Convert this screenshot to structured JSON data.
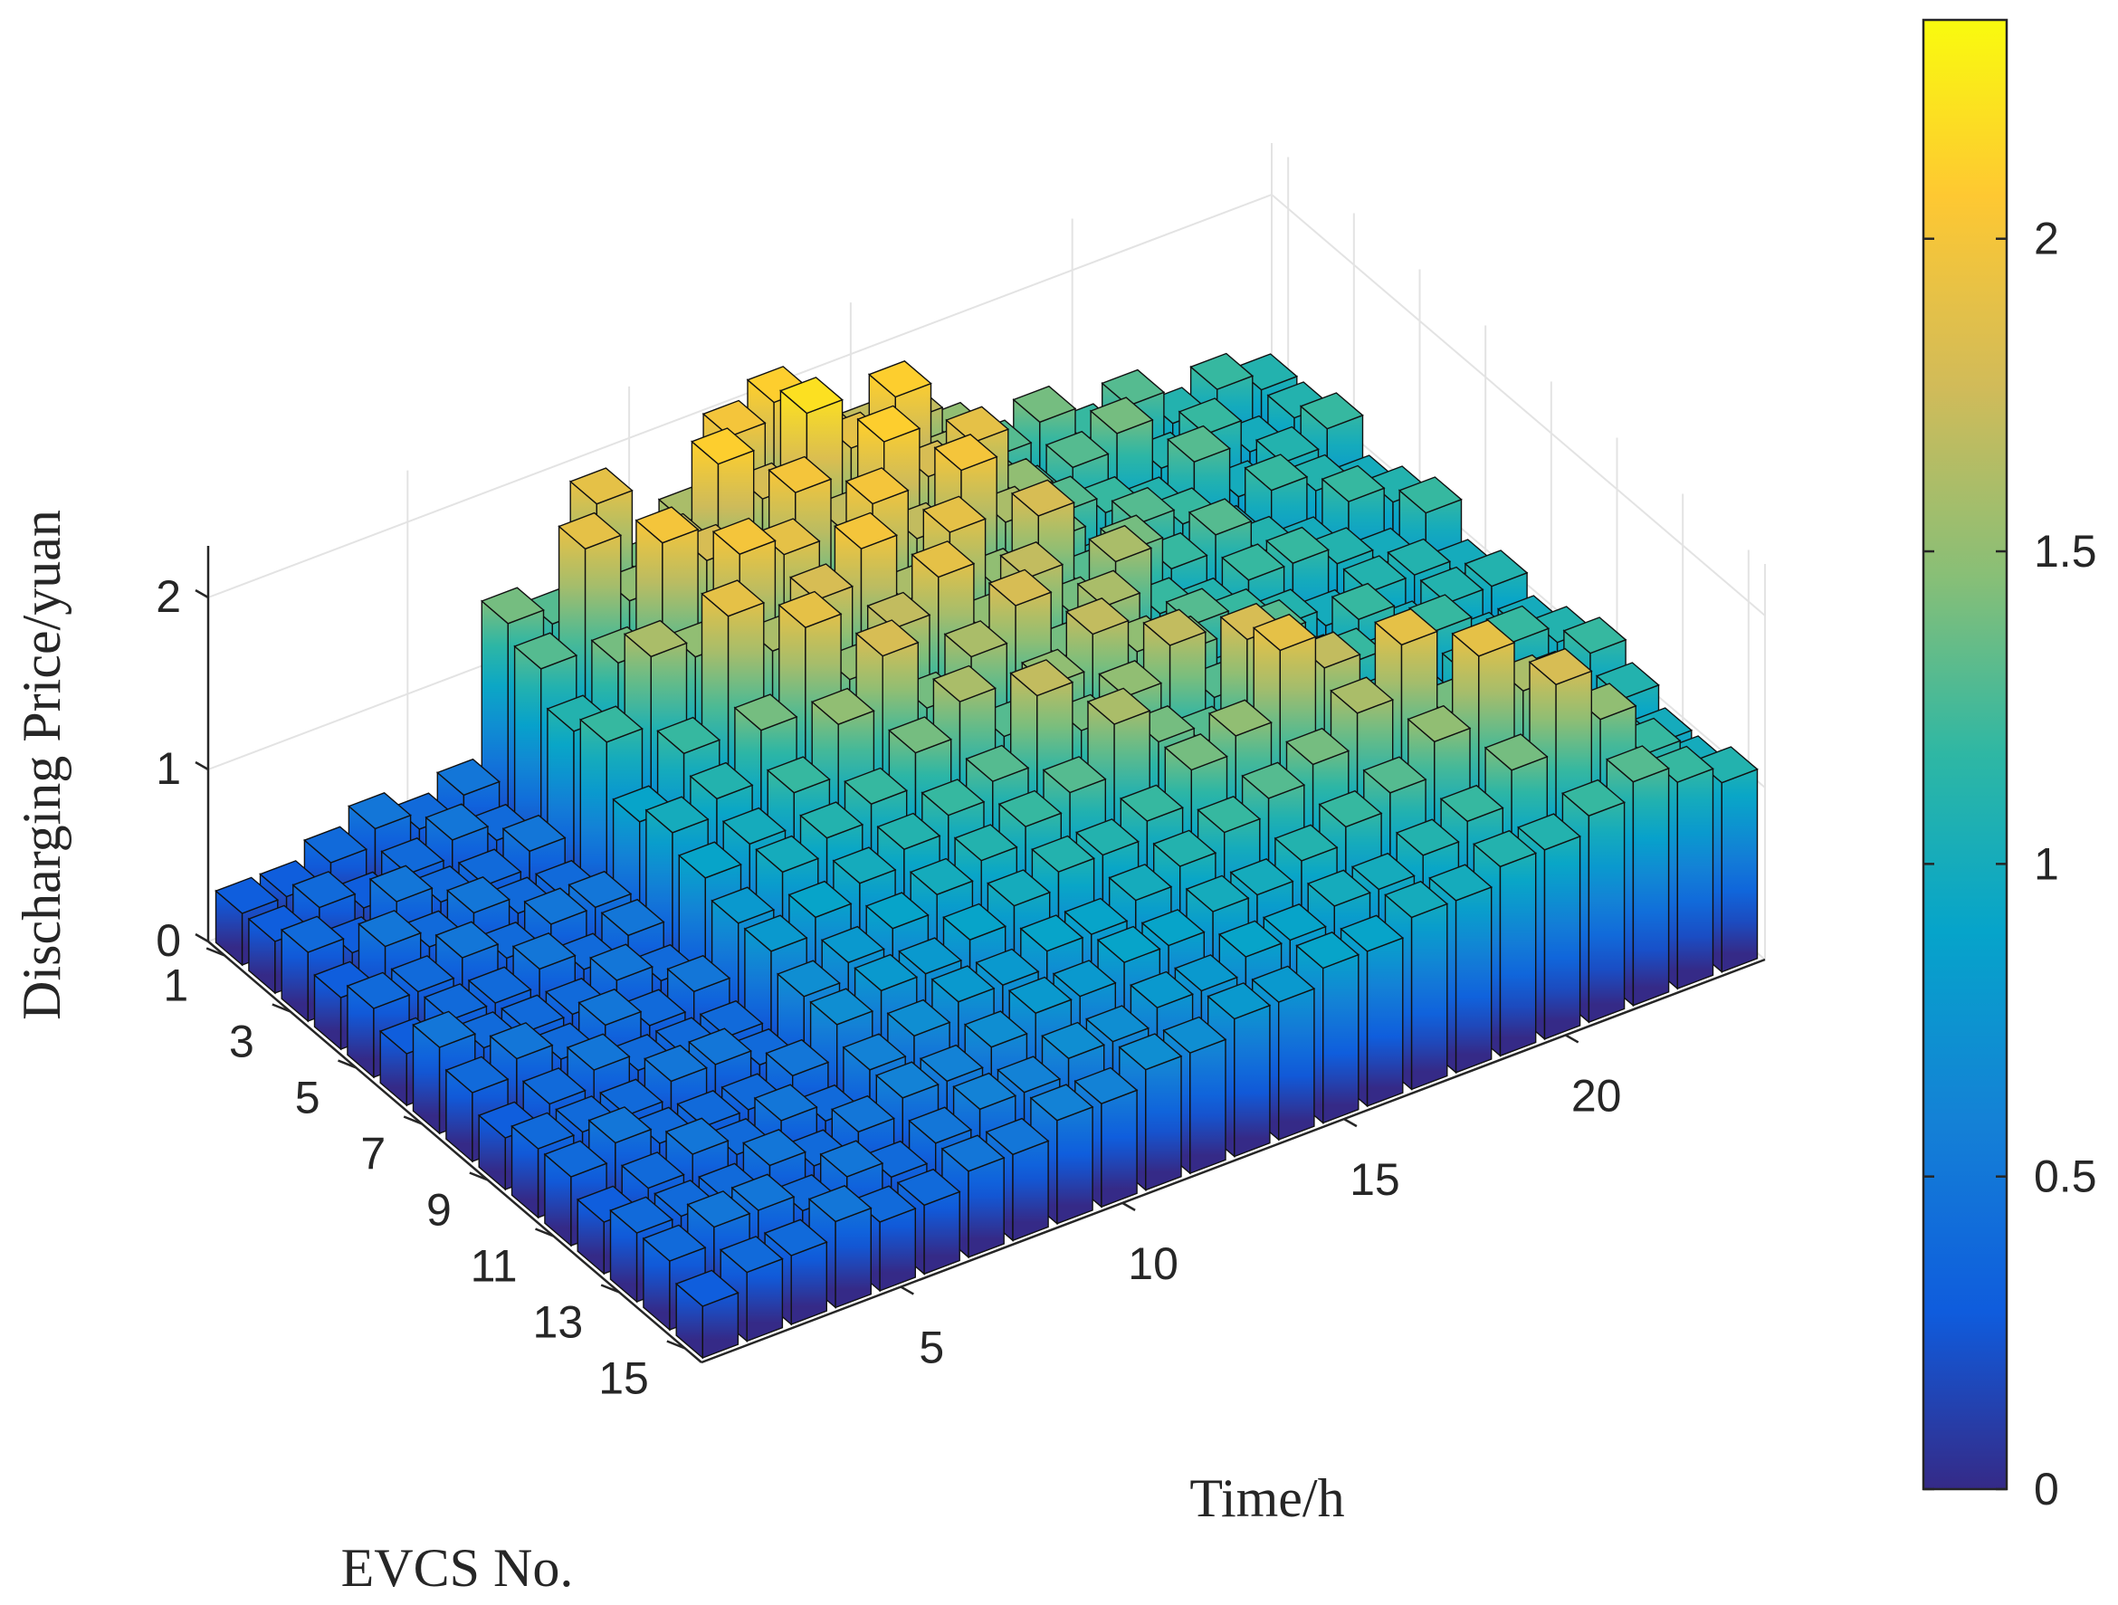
{
  "chart_data": {
    "type": "bar3d",
    "title": "",
    "xlabel": "Time/h",
    "ylabel": "EVCS No.",
    "zlabel": "Discharging Price/yuan",
    "zlim": [
      0,
      2.3
    ],
    "clim": [
      0,
      2.35
    ],
    "x_ticks": [
      "5",
      "10",
      "15",
      "20"
    ],
    "y_ticks": [
      "1",
      "3",
      "5",
      "7",
      "9",
      "11",
      "13",
      "15"
    ],
    "z_ticks": [
      "0",
      "1",
      "2"
    ],
    "colorbar_ticks": [
      "0",
      "0.5",
      "1",
      "1.5",
      "2"
    ],
    "colormap": "parula",
    "x": [
      1,
      2,
      3,
      4,
      5,
      6,
      7,
      8,
      9,
      10,
      11,
      12,
      13,
      14,
      15,
      16,
      17,
      18,
      19,
      20,
      21,
      22,
      23,
      24
    ],
    "y": [
      1,
      2,
      3,
      4,
      5,
      6,
      7,
      8,
      9,
      10,
      11,
      12,
      13,
      14,
      15
    ],
    "values": [
      [
        0.3,
        0.3,
        0.4,
        0.5,
        0.4,
        0.5,
        1.4,
        1.3,
        1.9,
        1.4,
        1.6,
        2.0,
        2.1,
        1.8,
        1.7,
        1.7,
        1.5,
        1.3,
        1.4,
        1.2,
        1.3,
        1.1,
        1.2,
        1.1
      ],
      [
        0.3,
        0.4,
        0.3,
        0.4,
        0.5,
        0.4,
        1.3,
        1.9,
        1.5,
        1.7,
        2.1,
        1.8,
        2.2,
        1.9,
        2.1,
        1.6,
        1.4,
        1.2,
        1.3,
        1.4,
        1.1,
        1.2,
        1.0,
        1.1
      ],
      [
        0.4,
        0.3,
        0.5,
        0.4,
        0.4,
        0.5,
        1.1,
        1.4,
        2.0,
        1.8,
        1.6,
        2.0,
        1.7,
        2.1,
        1.8,
        1.9,
        1.5,
        1.3,
        1.2,
        1.1,
        1.3,
        1.0,
        1.1,
        1.2
      ],
      [
        0.3,
        0.5,
        0.4,
        0.5,
        0.4,
        0.4,
        1.2,
        1.6,
        1.5,
        2.0,
        1.9,
        1.5,
        2.0,
        1.7,
        2.0,
        1.6,
        1.4,
        1.1,
        1.3,
        1.2,
        1.0,
        1.2,
        1.1,
        1.0
      ],
      [
        0.4,
        0.4,
        0.5,
        0.4,
        0.5,
        0.5,
        0.9,
        1.2,
        1.9,
        1.6,
        1.8,
        2.0,
        1.6,
        1.9,
        1.5,
        1.8,
        1.3,
        1.4,
        1.2,
        1.3,
        1.1,
        1.0,
        1.2,
        1.1
      ],
      [
        0.3,
        0.4,
        0.4,
        0.5,
        0.4,
        0.5,
        1.0,
        1.1,
        1.4,
        1.9,
        1.5,
        1.7,
        1.9,
        1.5,
        1.7,
        1.4,
        1.6,
        1.2,
        1.1,
        1.2,
        1.2,
        1.1,
        1.0,
        1.2
      ],
      [
        0.5,
        0.4,
        0.4,
        0.4,
        0.5,
        0.4,
        0.9,
        1.0,
        1.2,
        1.5,
        1.8,
        1.4,
        1.6,
        1.8,
        1.4,
        1.6,
        1.2,
        1.3,
        1.2,
        1.1,
        1.0,
        1.1,
        1.1,
        1.0
      ],
      [
        0.4,
        0.5,
        0.4,
        0.5,
        0.4,
        0.5,
        0.8,
        1.0,
        1.1,
        1.2,
        1.4,
        1.6,
        1.3,
        1.5,
        1.7,
        1.5,
        1.4,
        1.1,
        1.3,
        1.0,
        1.2,
        1.0,
        1.1,
        1.1
      ],
      [
        0.3,
        0.4,
        0.5,
        0.4,
        0.4,
        0.4,
        0.8,
        0.9,
        1.0,
        1.1,
        1.2,
        1.3,
        1.7,
        1.4,
        1.5,
        1.7,
        1.3,
        1.2,
        1.1,
        1.2,
        1.1,
        1.2,
        1.0,
        1.0
      ],
      [
        0.4,
        0.4,
        0.4,
        0.5,
        0.5,
        0.4,
        0.7,
        0.8,
        0.9,
        1.0,
        1.1,
        1.2,
        1.3,
        1.6,
        1.4,
        1.3,
        1.8,
        1.4,
        1.2,
        1.1,
        1.0,
        1.1,
        1.2,
        1.1
      ],
      [
        0.4,
        0.5,
        0.4,
        0.4,
        0.4,
        0.5,
        0.7,
        0.8,
        0.8,
        0.9,
        1.0,
        1.1,
        1.1,
        1.2,
        1.4,
        1.5,
        1.9,
        1.7,
        1.3,
        1.2,
        1.1,
        1.0,
        1.1,
        1.2
      ],
      [
        0.3,
        0.4,
        0.5,
        0.4,
        0.5,
        0.4,
        0.6,
        0.7,
        0.8,
        0.8,
        0.9,
        0.9,
        1.0,
        1.1,
        1.2,
        1.3,
        1.4,
        1.6,
        1.9,
        1.4,
        1.2,
        1.1,
        1.0,
        1.1
      ],
      [
        0.4,
        0.4,
        0.4,
        0.5,
        0.4,
        0.5,
        0.6,
        0.6,
        0.7,
        0.8,
        0.8,
        0.9,
        0.9,
        1.0,
        1.0,
        1.1,
        1.2,
        1.3,
        1.5,
        1.9,
        1.6,
        1.3,
        1.1,
        1.0
      ],
      [
        0.4,
        0.5,
        0.5,
        0.4,
        0.5,
        0.4,
        0.5,
        0.6,
        0.6,
        0.7,
        0.7,
        0.8,
        0.8,
        0.9,
        0.9,
        1.0,
        1.0,
        1.1,
        1.2,
        1.4,
        1.8,
        1.5,
        1.2,
        1.0
      ],
      [
        0.3,
        0.4,
        0.4,
        0.5,
        0.4,
        0.4,
        0.5,
        0.5,
        0.6,
        0.6,
        0.7,
        0.7,
        0.8,
        0.8,
        0.9,
        0.9,
        1.0,
        1.0,
        1.1,
        1.1,
        1.2,
        1.3,
        1.2,
        1.1
      ]
    ]
  }
}
